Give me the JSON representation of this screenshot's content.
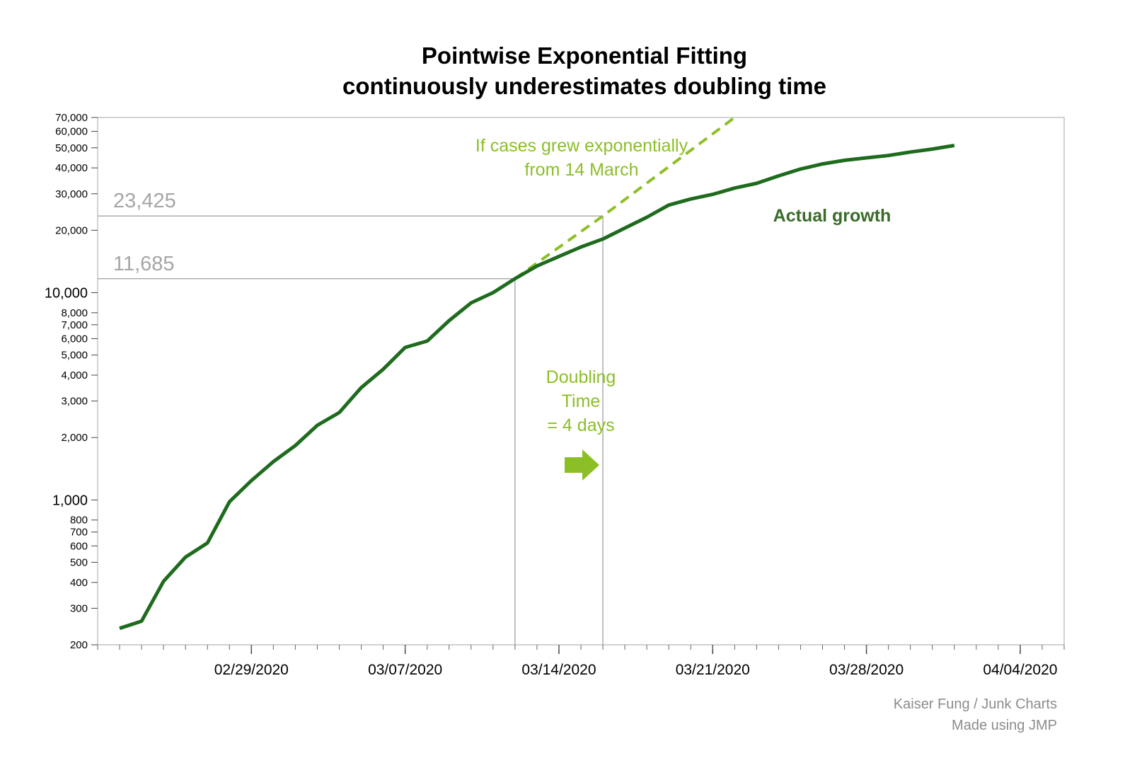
{
  "chart_data": {
    "type": "line",
    "title": [
      "Pointwise Exponential Fitting",
      "continuously underestimates doubling time"
    ],
    "xlabel": "",
    "ylabel": "",
    "yscale": "log",
    "ylim": [
      200,
      70000
    ],
    "xlim": [
      "2020-02-22",
      "2020-04-06"
    ],
    "x_ticks": [
      "02/29/2020",
      "03/07/2020",
      "03/14/2020",
      "03/21/2020",
      "03/28/2020",
      "04/04/2020"
    ],
    "y_ticks": [
      {
        "value": 200,
        "label": "200",
        "major": false
      },
      {
        "value": 300,
        "label": "300",
        "major": false
      },
      {
        "value": 400,
        "label": "400",
        "major": false
      },
      {
        "value": 500,
        "label": "500",
        "major": false
      },
      {
        "value": 600,
        "label": "600",
        "major": false
      },
      {
        "value": 700,
        "label": "700",
        "major": false
      },
      {
        "value": 800,
        "label": "800",
        "major": false
      },
      {
        "value": 1000,
        "label": "1,000",
        "major": true
      },
      {
        "value": 2000,
        "label": "2,000",
        "major": false
      },
      {
        "value": 3000,
        "label": "3,000",
        "major": false
      },
      {
        "value": 4000,
        "label": "4,000",
        "major": false
      },
      {
        "value": 5000,
        "label": "5,000",
        "major": false
      },
      {
        "value": 6000,
        "label": "6,000",
        "major": false
      },
      {
        "value": 7000,
        "label": "7,000",
        "major": false
      },
      {
        "value": 8000,
        "label": "8,000",
        "major": false
      },
      {
        "value": 10000,
        "label": "10,000",
        "major": true
      },
      {
        "value": 20000,
        "label": "20,000",
        "major": false
      },
      {
        "value": 30000,
        "label": "30,000",
        "major": false
      },
      {
        "value": 40000,
        "label": "40,000",
        "major": false
      },
      {
        "value": 50000,
        "label": "50,000",
        "major": false
      },
      {
        "value": 60000,
        "label": "60,000",
        "major": false
      },
      {
        "value": 70000,
        "label": "70,000",
        "major": false
      }
    ],
    "series": [
      {
        "name": "Actual growth",
        "color": "#1e6b1e",
        "points": [
          {
            "x": "2020-02-23",
            "y": 240
          },
          {
            "x": "2020-02-24",
            "y": 260
          },
          {
            "x": "2020-02-25",
            "y": 405
          },
          {
            "x": "2020-02-26",
            "y": 530
          },
          {
            "x": "2020-02-27",
            "y": 620
          },
          {
            "x": "2020-02-28",
            "y": 980
          },
          {
            "x": "2020-02-29",
            "y": 1240
          },
          {
            "x": "2020-03-01",
            "y": 1530
          },
          {
            "x": "2020-03-02",
            "y": 1830
          },
          {
            "x": "2020-03-03",
            "y": 2290
          },
          {
            "x": "2020-03-04",
            "y": 2640
          },
          {
            "x": "2020-03-05",
            "y": 3480
          },
          {
            "x": "2020-03-06",
            "y": 4270
          },
          {
            "x": "2020-03-07",
            "y": 5440
          },
          {
            "x": "2020-03-08",
            "y": 5840
          },
          {
            "x": "2020-03-09",
            "y": 7330
          },
          {
            "x": "2020-03-10",
            "y": 8930
          },
          {
            "x": "2020-03-11",
            "y": 10000
          },
          {
            "x": "2020-03-12",
            "y": 11685
          },
          {
            "x": "2020-03-13",
            "y": 13450
          },
          {
            "x": "2020-03-14",
            "y": 14950
          },
          {
            "x": "2020-03-15",
            "y": 16600
          },
          {
            "x": "2020-03-16",
            "y": 18150
          },
          {
            "x": "2020-03-17",
            "y": 20500
          },
          {
            "x": "2020-03-18",
            "y": 23100
          },
          {
            "x": "2020-03-19",
            "y": 26460
          },
          {
            "x": "2020-03-20",
            "y": 28300
          },
          {
            "x": "2020-03-21",
            "y": 29800
          },
          {
            "x": "2020-03-22",
            "y": 31950
          },
          {
            "x": "2020-03-23",
            "y": 33700
          },
          {
            "x": "2020-03-24",
            "y": 36600
          },
          {
            "x": "2020-03-25",
            "y": 39500
          },
          {
            "x": "2020-03-26",
            "y": 41800
          },
          {
            "x": "2020-03-27",
            "y": 43500
          },
          {
            "x": "2020-03-28",
            "y": 44700
          },
          {
            "x": "2020-03-29",
            "y": 45900
          },
          {
            "x": "2020-03-30",
            "y": 47700
          },
          {
            "x": "2020-03-31",
            "y": 49300
          },
          {
            "x": "2020-04-01",
            "y": 51300
          }
        ]
      },
      {
        "name": "If cases grew exponentially from 14 March",
        "color": "#8cbf26",
        "style": "dashed",
        "points": [
          {
            "x": "2020-03-12",
            "y": 11685
          },
          {
            "x": "2020-03-16",
            "y": 23425
          },
          {
            "x": "2020-03-22",
            "y": 70000
          }
        ]
      }
    ],
    "reference_lines": [
      {
        "value": 23425,
        "label": "23,425",
        "x": "2020-03-16"
      },
      {
        "value": 11685,
        "label": "11,685",
        "x": "2020-03-12"
      }
    ],
    "annotations": {
      "exponential_label": [
        "If cases grew exponentially",
        "from 14 March"
      ],
      "actual_label": "Actual growth",
      "doubling_label": [
        "Doubling",
        "Time",
        "= 4 days"
      ]
    },
    "colors": {
      "actual": "#1e6b1e",
      "exponential": "#8cbf26",
      "reference": "#a6a6a6"
    }
  },
  "credits": [
    "Kaiser Fung / Junk Charts",
    "Made using JMP"
  ]
}
